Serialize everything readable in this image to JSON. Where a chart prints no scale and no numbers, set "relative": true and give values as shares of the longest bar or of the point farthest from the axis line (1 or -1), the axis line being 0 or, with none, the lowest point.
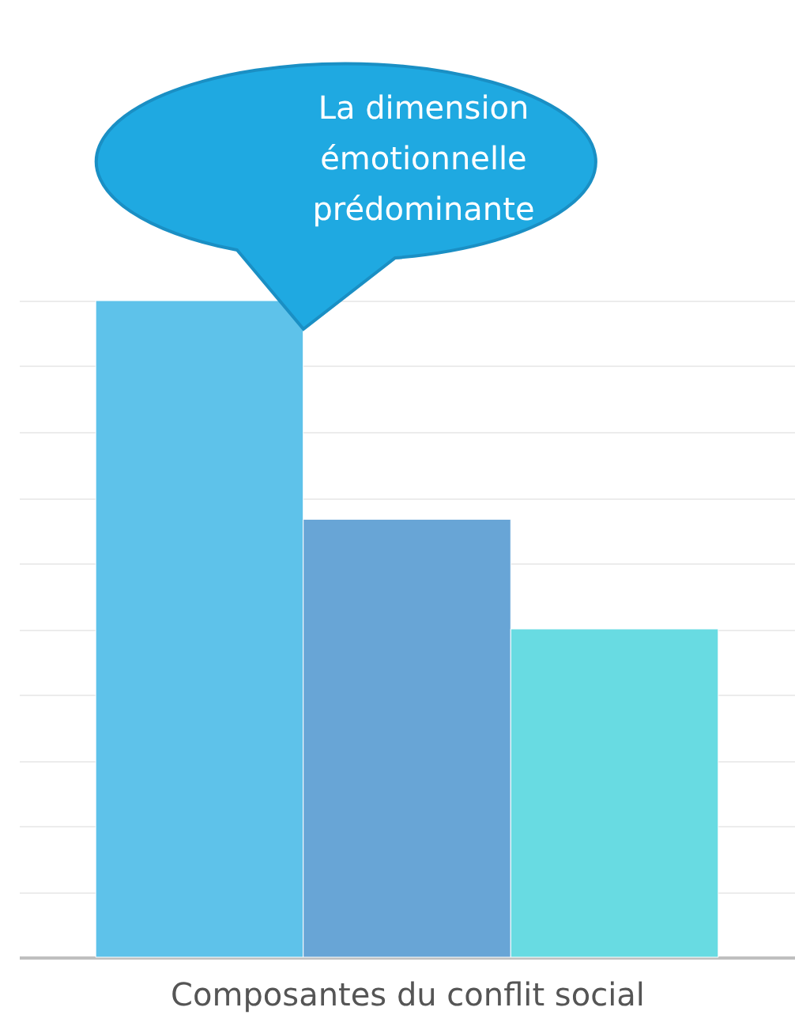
{
  "chart_data": {
    "type": "bar",
    "relative": true,
    "categories": [
      null,
      null,
      null
    ],
    "values": [
      1,
      0.667,
      0.5
    ],
    "colors": [
      "#5ec2ea",
      "#68a5d6",
      "#68dbe2"
    ],
    "xlabel": "Composantes du conflit social",
    "annotations": [
      "La dimension\némotionnelle\nprédominante"
    ],
    "grid": "y"
  }
}
